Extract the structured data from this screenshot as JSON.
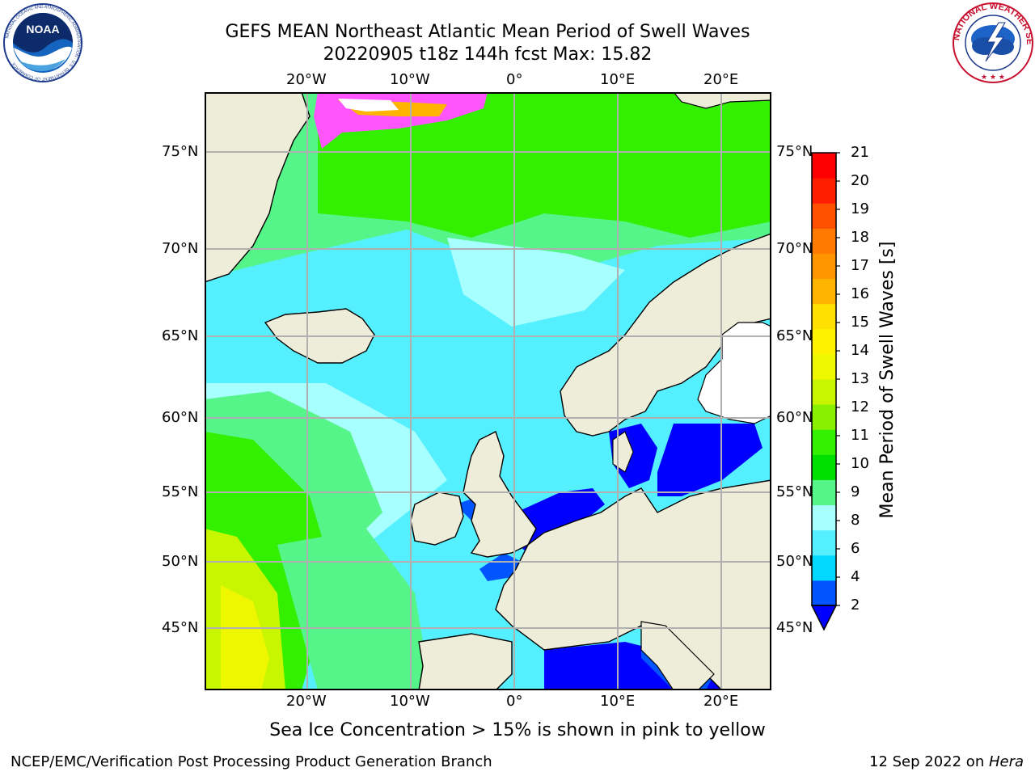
{
  "header": {
    "title_line1": "GEFS MEAN Northeast Atlantic Mean Period of Swell Waves",
    "title_line2": "20220905 t18z 144h fcst   Max: 15.82"
  },
  "logos": {
    "left_name": "NOAA",
    "left_ring_text": "NATIONAL OCEANIC AND ATMOSPHERIC ADMINISTRATION · U.S. DEPARTMENT OF COMMERCE",
    "right_ring_text": "NATIONAL WEATHER SERVICE"
  },
  "map": {
    "projection": "cylindrical (lon/lat)",
    "extent": {
      "lon": [
        -30,
        25
      ],
      "lat": [
        41,
        78
      ]
    },
    "lon_ticks": [
      "20°W",
      "10°W",
      "0°",
      "10°E",
      "20°E"
    ],
    "lat_ticks": [
      "75°N",
      "70°N",
      "65°N",
      "60°N",
      "55°N",
      "50°N",
      "45°N"
    ],
    "grid": true,
    "land_color": "#eeedd9",
    "sea_ice_note": "Sea Ice Concentration > 15% is shown in pink to yellow"
  },
  "colorbar": {
    "label": "Mean Period of Swell Waves [s]",
    "ticks": [
      "21",
      "20",
      "19",
      "18",
      "17",
      "16",
      "15",
      "14",
      "13",
      "12",
      "11",
      "10",
      "9",
      "8",
      "6",
      "4",
      "2"
    ],
    "extend": "min",
    "colors_bottom_to_top": [
      "#0055ff",
      "#00d8ff",
      "#55f0ff",
      "#a8ffff",
      "#55f58a",
      "#00e000",
      "#33ef00",
      "#88f000",
      "#c8f500",
      "#eef700",
      "#fff200",
      "#ffe000",
      "#ffb400",
      "#ff9600",
      "#ff7a00",
      "#ff5000",
      "#ff1e00",
      "#ff0000"
    ],
    "under_color": "#0000ff"
  },
  "footer": {
    "left": "NCEP/EMC/Verification Post Processing Product Generation Branch",
    "date": "12 Sep 2022 on ",
    "machine": "Hera"
  }
}
